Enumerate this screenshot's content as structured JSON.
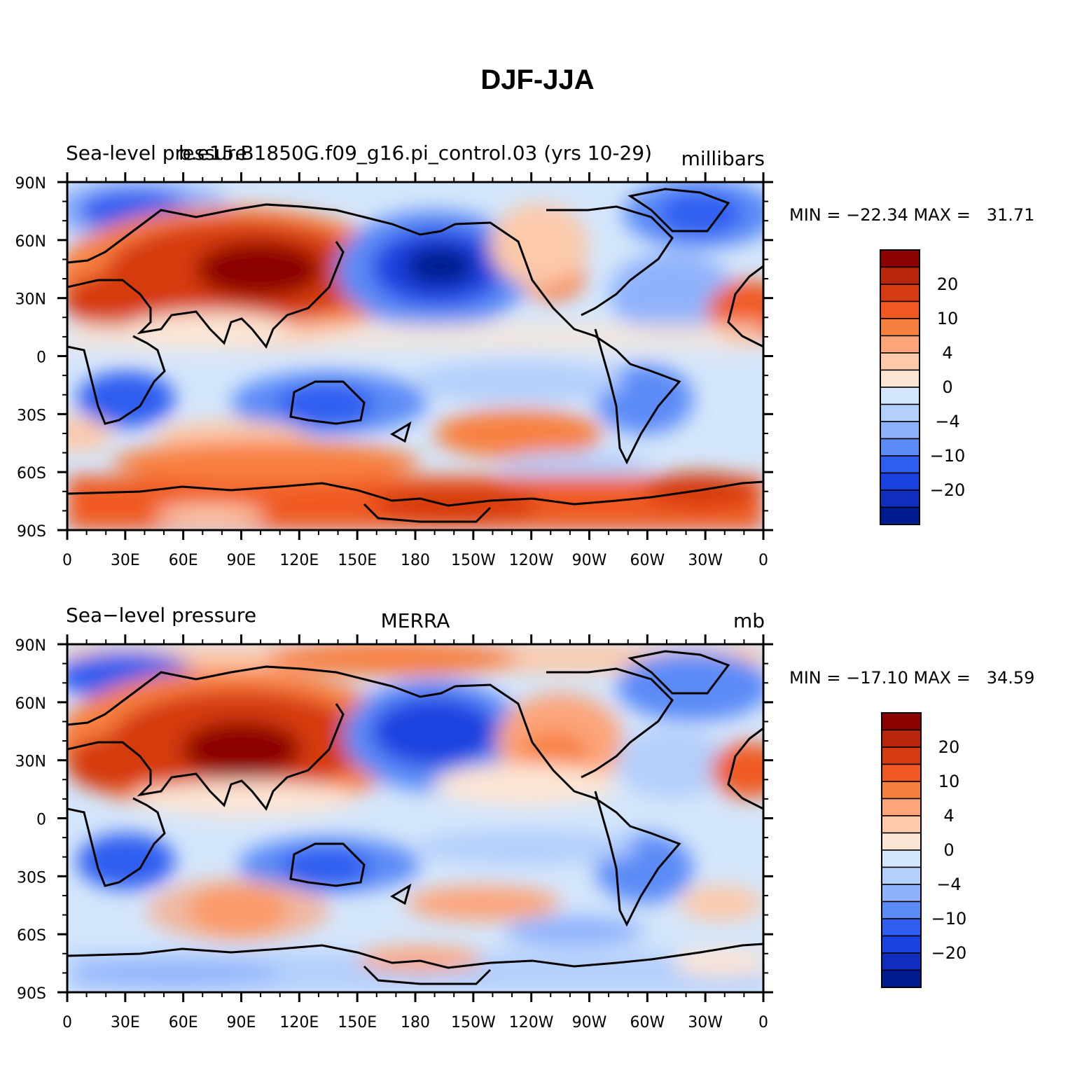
{
  "title": "DJF-JJA",
  "panels": [
    {
      "left_title": "Sea-level pressure",
      "center_title": "b.e15.B1850G.f09_g16.pi_control.03 (yrs 10-29)",
      "units": "millibars",
      "stats": "MIN = −22.34 MAX =   31.71",
      "min": -22.34,
      "max": 31.71
    },
    {
      "left_title": "Sea−level pressure",
      "center_title": "MERRA",
      "units": "mb",
      "stats": "MIN = −17.10 MAX =   34.59",
      "min": -17.1,
      "max": 34.59
    }
  ],
  "axes": {
    "lat_labels": [
      "90N",
      "60N",
      "30N",
      "0",
      "30S",
      "60S",
      "90S"
    ],
    "lon_labels": [
      "0",
      "30E",
      "60E",
      "90E",
      "120E",
      "150E",
      "180",
      "150W",
      "120W",
      "90W",
      "60W",
      "30W",
      "0"
    ]
  },
  "colorbar": {
    "colors": [
      "#8b0000",
      "#b8260a",
      "#d63a10",
      "#f05a22",
      "#f8803f",
      "#fca47a",
      "#fcc9aa",
      "#fde5d4",
      "#d4e6fb",
      "#b4cffc",
      "#8fb2fc",
      "#5c8bf7",
      "#2f5df0",
      "#1a42e0",
      "#0f2ec0",
      "#001a8f"
    ],
    "labels": [
      "20",
      "10",
      "4",
      "0",
      "−4",
      "−10",
      "−20"
    ]
  }
}
